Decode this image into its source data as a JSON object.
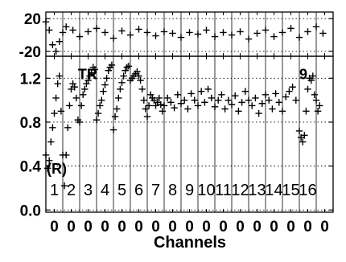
{
  "chart_data": [
    {
      "panel": "residual",
      "type": "scatter",
      "marker": "plus",
      "ylim": [
        -26,
        28
      ],
      "y_ticks": [
        "20",
        "-20"
      ],
      "y_tick_values": [
        20,
        -20
      ],
      "x_range": [
        0,
        17
      ],
      "series": [
        {
          "x": [
            0.0,
            0.2,
            0.4,
            0.6,
            0.8,
            1.0,
            1.2,
            1.6,
            2.0,
            2.5,
            3.0,
            3.5,
            4.0,
            4.5,
            5.0,
            5.5,
            6.0,
            6.5,
            7.0,
            7.5,
            8.0,
            8.5,
            9.0,
            9.5,
            10.0,
            10.5,
            11.0,
            11.5,
            12.0,
            12.5,
            13.0,
            13.5,
            14.0,
            14.5,
            15.0,
            15.5,
            16.0,
            16.4
          ],
          "y": [
            16,
            6,
            -12,
            -20,
            -8,
            3,
            10,
            6,
            -2,
            4,
            8,
            3,
            -4,
            5,
            0,
            7,
            3,
            -1,
            4,
            2,
            -3,
            3,
            1,
            6,
            -2,
            3,
            0,
            4,
            -5,
            2,
            6,
            -2,
            3,
            8,
            -3,
            4,
            10,
            2
          ]
        }
      ]
    },
    {
      "panel": "ratio",
      "type": "scatter",
      "marker": "plus",
      "ylim": [
        -0.02,
        1.4
      ],
      "y_ticks": [
        "1.2",
        "0.8",
        "0.4",
        "0.0"
      ],
      "y_tick_values": [
        1.2,
        0.8,
        0.4,
        0.0
      ],
      "x_range": [
        0,
        17
      ],
      "annotations": [
        {
          "text": "TR",
          "x": 1.9,
          "y": 1.19
        },
        {
          "text": "9",
          "x": 15.0,
          "y": 1.19
        },
        {
          "text": "(R)",
          "x": 0.05,
          "y": 0.33
        }
      ],
      "channel_labels": [
        "1",
        "2",
        "3",
        "4",
        "5",
        "6",
        "7",
        "8",
        "9",
        "10",
        "11",
        "12",
        "13",
        "14",
        "15",
        "16"
      ],
      "series": [
        {
          "x": [
            0.0,
            0.1,
            0.2,
            0.3,
            0.4,
            0.5,
            0.6,
            0.7,
            0.8,
            0.9,
            1.0,
            1.1,
            1.2,
            1.3,
            1.4,
            1.5,
            1.6,
            1.7,
            1.8,
            1.9,
            2.0,
            2.1,
            2.2,
            2.3,
            2.4,
            2.5,
            2.6,
            2.7,
            2.8,
            2.9,
            3.0,
            3.1,
            3.2,
            3.3,
            3.4,
            3.5,
            3.6,
            3.7,
            3.8,
            3.9,
            4.0,
            4.1,
            4.2,
            4.3,
            4.4,
            4.5,
            4.6,
            4.7,
            4.8,
            4.9,
            5.0,
            5.1,
            5.2,
            5.3,
            5.4,
            5.5,
            5.6,
            5.7,
            5.8,
            5.9,
            6.0,
            6.1,
            6.2,
            6.3,
            6.4,
            6.5,
            6.6,
            6.7,
            6.8,
            6.9,
            7.0,
            7.2,
            7.4,
            7.6,
            7.8,
            8.0,
            8.2,
            8.4,
            8.6,
            8.8,
            9.0,
            9.2,
            9.4,
            9.6,
            9.8,
            10.0,
            10.2,
            10.4,
            10.6,
            10.8,
            11.0,
            11.2,
            11.4,
            11.6,
            11.8,
            12.0,
            12.2,
            12.4,
            12.6,
            12.8,
            13.0,
            13.2,
            13.4,
            13.6,
            13.8,
            14.0,
            14.2,
            14.4,
            14.6,
            14.8,
            15.0,
            15.1,
            15.2,
            15.3,
            15.4,
            15.5,
            15.6,
            15.7,
            15.8,
            15.9,
            16.0,
            16.1,
            16.2
          ],
          "y": [
            0.5,
            0.38,
            0.45,
            0.62,
            0.75,
            0.88,
            1.02,
            1.15,
            1.22,
            0.9,
            0.5,
            0.22,
            0.5,
            0.75,
            0.95,
            1.1,
            1.15,
            1.12,
            1.02,
            0.82,
            0.8,
            0.95,
            1.05,
            1.1,
            1.15,
            1.18,
            1.22,
            1.25,
            1.3,
            1.28,
            0.82,
            0.88,
            0.95,
            1.0,
            1.08,
            1.14,
            1.2,
            1.27,
            1.3,
            1.32,
            0.73,
            0.85,
            0.92,
            1.02,
            1.1,
            1.16,
            1.22,
            1.27,
            1.3,
            1.31,
            1.18,
            1.2,
            1.22,
            1.24,
            1.26,
            1.22,
            1.18,
            1.1,
            1.0,
            0.92,
            0.85,
            0.95,
            1.05,
            1.02,
            1.0,
            0.95,
            0.98,
            1.02,
            0.96,
            0.9,
            0.95,
            1.02,
            0.98,
            0.93,
            1.05,
            0.97,
            1.0,
            0.92,
            1.06,
            1.0,
            0.95,
            1.08,
            0.98,
            1.1,
            1.02,
            0.94,
            1.0,
            1.05,
            0.92,
            1.0,
            0.96,
            1.04,
            0.9,
            0.98,
            1.08,
            1.0,
            0.95,
            1.02,
            0.88,
            0.97,
            1.05,
            1.0,
            0.92,
            1.06,
            0.98,
            0.9,
            1.03,
            1.08,
            1.12,
            1.0,
            0.72,
            0.66,
            0.62,
            0.68,
            0.9,
            1.1,
            1.2,
            1.18,
            1.22,
            1.05,
            1.0,
            0.9,
            0.95
          ]
        }
      ]
    }
  ],
  "x_tick_labels": [
    "0",
    "0",
    "0",
    "0",
    "0",
    "0",
    "0",
    "0",
    "0",
    "0",
    "0",
    "0",
    "0",
    "0",
    "0",
    "0",
    "0"
  ],
  "x_axis_label": "Channels"
}
